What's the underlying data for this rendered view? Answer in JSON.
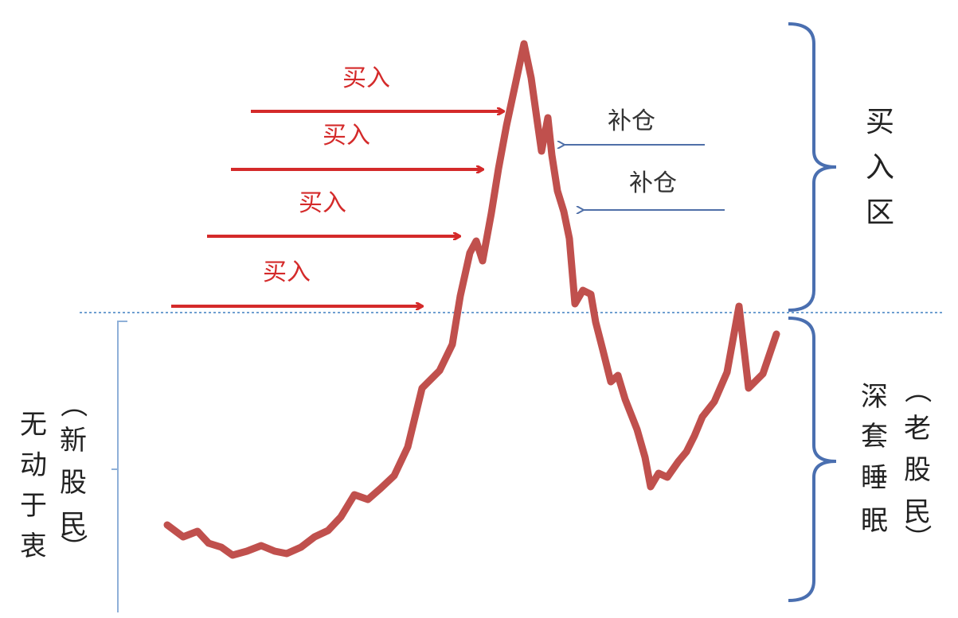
{
  "labels": {
    "buy": [
      "买入",
      "买入",
      "买入",
      "买入"
    ],
    "add": [
      "补仓",
      "补仓"
    ],
    "buy_zone": [
      "买",
      "入",
      "区"
    ],
    "left_main": [
      "无",
      "动",
      "于",
      "衷"
    ],
    "left_paren": [
      "（",
      "新",
      "股",
      "民",
      "）"
    ],
    "right_main": [
      "深",
      "套",
      "睡",
      "眠"
    ],
    "right_paren": [
      "（",
      "老",
      "股",
      "民",
      "）"
    ]
  },
  "colors": {
    "price_line": "#c0504d",
    "buy_arrow": "#d42a2a",
    "buy_text": "#d42a2a",
    "add_arrow": "#4f6fa8",
    "add_text": "#333333",
    "divider": "#6f9fd0",
    "brace": "#4a6fb0",
    "text": "#222222"
  },
  "series": {
    "name": "",
    "points": [
      [
        210,
        660
      ],
      [
        230,
        675
      ],
      [
        248,
        668
      ],
      [
        262,
        683
      ],
      [
        278,
        688
      ],
      [
        292,
        698
      ],
      [
        310,
        693
      ],
      [
        328,
        686
      ],
      [
        345,
        693
      ],
      [
        360,
        696
      ],
      [
        378,
        688
      ],
      [
        395,
        675
      ],
      [
        412,
        667
      ],
      [
        428,
        650
      ],
      [
        445,
        622
      ],
      [
        462,
        628
      ],
      [
        478,
        614
      ],
      [
        495,
        598
      ],
      [
        512,
        562
      ],
      [
        530,
        488
      ],
      [
        552,
        466
      ],
      [
        568,
        433
      ],
      [
        578,
        372
      ],
      [
        590,
        318
      ],
      [
        598,
        303
      ],
      [
        606,
        328
      ],
      [
        617,
        268
      ],
      [
        626,
        212
      ],
      [
        636,
        158
      ],
      [
        648,
        102
      ],
      [
        658,
        55
      ],
      [
        667,
        98
      ],
      [
        675,
        155
      ],
      [
        680,
        190
      ],
      [
        688,
        148
      ],
      [
        693,
        195
      ],
      [
        700,
        240
      ],
      [
        708,
        266
      ],
      [
        715,
        300
      ],
      [
        722,
        382
      ],
      [
        732,
        365
      ],
      [
        742,
        370
      ],
      [
        748,
        405
      ],
      [
        757,
        440
      ],
      [
        767,
        480
      ],
      [
        776,
        472
      ],
      [
        785,
        502
      ],
      [
        800,
        540
      ],
      [
        810,
        575
      ],
      [
        817,
        612
      ],
      [
        827,
        595
      ],
      [
        838,
        600
      ],
      [
        852,
        580
      ],
      [
        862,
        568
      ],
      [
        872,
        548
      ],
      [
        882,
        524
      ],
      [
        897,
        505
      ],
      [
        913,
        468
      ],
      [
        928,
        385
      ],
      [
        940,
        488
      ],
      [
        958,
        470
      ],
      [
        975,
        420
      ]
    ]
  }
}
